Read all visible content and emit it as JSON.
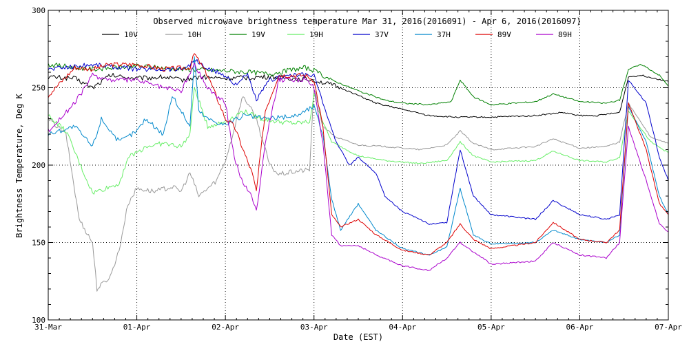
{
  "chart_data": {
    "type": "line",
    "title": "Observed microwave brightness temperature Mar 31, 2016(2016091) - Apr  6, 2016(2016097)",
    "xlabel": "Date (EST)",
    "ylabel": "Brightness Temperature, Deg K",
    "xlim": [
      0,
      7
    ],
    "ylim": [
      100,
      300
    ],
    "x_ticks": [
      {
        "value": 0,
        "label": "31-Mar"
      },
      {
        "value": 1,
        "label": "01-Apr"
      },
      {
        "value": 2,
        "label": "02-Apr"
      },
      {
        "value": 3,
        "label": "03-Apr"
      },
      {
        "value": 4,
        "label": "04-Apr"
      },
      {
        "value": 5,
        "label": "05-Apr"
      },
      {
        "value": 6,
        "label": "06-Apr"
      },
      {
        "value": 7,
        "label": "07-Apr"
      }
    ],
    "y_ticks": [
      100,
      150,
      200,
      250,
      300
    ],
    "grid": "dotted at labeled ticks",
    "legend_position": "top",
    "series": [
      {
        "name": "10V",
        "color": "#000000",
        "points": [
          [
            0,
            257
          ],
          [
            0.3,
            256
          ],
          [
            0.5,
            250
          ],
          [
            0.7,
            258
          ],
          [
            1.0,
            256
          ],
          [
            1.3,
            257
          ],
          [
            1.5,
            255
          ],
          [
            1.7,
            257
          ],
          [
            2.0,
            256
          ],
          [
            2.5,
            257
          ],
          [
            3.0,
            255
          ],
          [
            3.3,
            250
          ],
          [
            3.7,
            240
          ],
          [
            4.0,
            236
          ],
          [
            4.3,
            232
          ],
          [
            4.6,
            231
          ],
          [
            5.0,
            231
          ],
          [
            5.5,
            232
          ],
          [
            5.8,
            234
          ],
          [
            6.0,
            232
          ],
          [
            6.2,
            232
          ],
          [
            6.45,
            234
          ],
          [
            6.55,
            257
          ],
          [
            6.7,
            258
          ],
          [
            7.0,
            254
          ]
        ]
      },
      {
        "name": "10H",
        "color": "#999999",
        "points": [
          [
            0,
            230
          ],
          [
            0.2,
            220
          ],
          [
            0.35,
            165
          ],
          [
            0.5,
            150
          ],
          [
            0.55,
            120
          ],
          [
            0.7,
            128
          ],
          [
            0.8,
            145
          ],
          [
            0.9,
            175
          ],
          [
            1.0,
            185
          ],
          [
            1.2,
            183
          ],
          [
            1.4,
            186
          ],
          [
            1.5,
            183
          ],
          [
            1.6,
            195
          ],
          [
            1.7,
            180
          ],
          [
            1.9,
            190
          ],
          [
            2.0,
            203
          ],
          [
            2.05,
            213
          ],
          [
            2.2,
            245
          ],
          [
            2.35,
            230
          ],
          [
            2.5,
            200
          ],
          [
            2.6,
            194
          ],
          [
            2.8,
            196
          ],
          [
            2.95,
            197
          ],
          [
            3.0,
            250
          ],
          [
            3.1,
            225
          ],
          [
            3.25,
            218
          ],
          [
            3.5,
            213
          ],
          [
            3.8,
            212
          ],
          [
            4.2,
            210
          ],
          [
            4.5,
            213
          ],
          [
            4.65,
            222
          ],
          [
            4.8,
            214
          ],
          [
            5.0,
            210
          ],
          [
            5.5,
            212
          ],
          [
            5.7,
            217
          ],
          [
            6.0,
            211
          ],
          [
            6.3,
            212
          ],
          [
            6.45,
            215
          ],
          [
            6.55,
            240
          ],
          [
            6.8,
            218
          ],
          [
            7.0,
            214
          ]
        ]
      },
      {
        "name": "19V",
        "color": "#008000",
        "points": [
          [
            0,
            265
          ],
          [
            0.5,
            262
          ],
          [
            1.0,
            264
          ],
          [
            1.5,
            262
          ],
          [
            2.0,
            261
          ],
          [
            2.5,
            259
          ],
          [
            2.9,
            263
          ],
          [
            3.0,
            261
          ],
          [
            3.2,
            255
          ],
          [
            3.5,
            248
          ],
          [
            3.8,
            242
          ],
          [
            4.0,
            240
          ],
          [
            4.3,
            239
          ],
          [
            4.55,
            241
          ],
          [
            4.65,
            255
          ],
          [
            4.8,
            244
          ],
          [
            5.0,
            239
          ],
          [
            5.5,
            241
          ],
          [
            5.7,
            246
          ],
          [
            6.0,
            241
          ],
          [
            6.3,
            240
          ],
          [
            6.45,
            242
          ],
          [
            6.55,
            262
          ],
          [
            6.7,
            265
          ],
          [
            6.9,
            258
          ],
          [
            7.0,
            251
          ]
        ]
      },
      {
        "name": "19H",
        "color": "#66ee66",
        "points": [
          [
            0,
            232
          ],
          [
            0.2,
            222
          ],
          [
            0.4,
            195
          ],
          [
            0.5,
            182
          ],
          [
            0.8,
            188
          ],
          [
            0.9,
            205
          ],
          [
            1.0,
            208
          ],
          [
            1.1,
            212
          ],
          [
            1.3,
            214
          ],
          [
            1.5,
            212
          ],
          [
            1.6,
            220
          ],
          [
            1.65,
            250
          ],
          [
            1.8,
            225
          ],
          [
            2.0,
            228
          ],
          [
            2.2,
            235
          ],
          [
            2.4,
            230
          ],
          [
            2.6,
            228
          ],
          [
            2.8,
            227
          ],
          [
            2.95,
            228
          ],
          [
            3.0,
            245
          ],
          [
            3.1,
            228
          ],
          [
            3.2,
            215
          ],
          [
            3.5,
            206
          ],
          [
            3.8,
            203
          ],
          [
            4.2,
            201
          ],
          [
            4.5,
            203
          ],
          [
            4.65,
            215
          ],
          [
            4.8,
            206
          ],
          [
            5.0,
            202
          ],
          [
            5.5,
            203
          ],
          [
            5.7,
            209
          ],
          [
            6.0,
            203
          ],
          [
            6.3,
            202
          ],
          [
            6.45,
            205
          ],
          [
            6.55,
            235
          ],
          [
            6.8,
            215
          ],
          [
            7.0,
            208
          ]
        ]
      },
      {
        "name": "37V",
        "color": "#0000cc",
        "points": [
          [
            0,
            262
          ],
          [
            0.5,
            265
          ],
          [
            1.0,
            262
          ],
          [
            1.5,
            262
          ],
          [
            1.6,
            265
          ],
          [
            1.65,
            268
          ],
          [
            1.8,
            262
          ],
          [
            2.0,
            258
          ],
          [
            2.1,
            252
          ],
          [
            2.25,
            258
          ],
          [
            2.35,
            242
          ],
          [
            2.5,
            255
          ],
          [
            2.7,
            258
          ],
          [
            3.0,
            258
          ],
          [
            3.1,
            240
          ],
          [
            3.25,
            215
          ],
          [
            3.4,
            200
          ],
          [
            3.5,
            205
          ],
          [
            3.7,
            195
          ],
          [
            3.8,
            180
          ],
          [
            4.0,
            170
          ],
          [
            4.3,
            162
          ],
          [
            4.5,
            163
          ],
          [
            4.65,
            210
          ],
          [
            4.8,
            180
          ],
          [
            5.0,
            168
          ],
          [
            5.5,
            165
          ],
          [
            5.7,
            177
          ],
          [
            6.0,
            168
          ],
          [
            6.3,
            165
          ],
          [
            6.45,
            168
          ],
          [
            6.55,
            255
          ],
          [
            6.75,
            240
          ],
          [
            6.9,
            205
          ],
          [
            7.0,
            190
          ]
        ]
      },
      {
        "name": "37H",
        "color": "#0088cc",
        "points": [
          [
            0,
            220
          ],
          [
            0.3,
            225
          ],
          [
            0.5,
            212
          ],
          [
            0.6,
            230
          ],
          [
            0.8,
            215
          ],
          [
            1.0,
            222
          ],
          [
            1.1,
            230
          ],
          [
            1.3,
            220
          ],
          [
            1.4,
            245
          ],
          [
            1.6,
            225
          ],
          [
            1.65,
            270
          ],
          [
            1.7,
            235
          ],
          [
            1.8,
            230
          ],
          [
            2.0,
            226
          ],
          [
            2.2,
            232
          ],
          [
            2.5,
            230
          ],
          [
            2.8,
            232
          ],
          [
            3.0,
            238
          ],
          [
            3.1,
            220
          ],
          [
            3.2,
            178
          ],
          [
            3.3,
            158
          ],
          [
            3.5,
            175
          ],
          [
            3.7,
            158
          ],
          [
            4.0,
            146
          ],
          [
            4.3,
            142
          ],
          [
            4.5,
            147
          ],
          [
            4.65,
            185
          ],
          [
            4.8,
            155
          ],
          [
            5.0,
            149
          ],
          [
            5.5,
            150
          ],
          [
            5.7,
            158
          ],
          [
            6.0,
            152
          ],
          [
            6.3,
            150
          ],
          [
            6.45,
            155
          ],
          [
            6.55,
            238
          ],
          [
            6.75,
            215
          ],
          [
            6.9,
            180
          ],
          [
            7.0,
            168
          ]
        ]
      },
      {
        "name": "89V",
        "color": "#dd0000",
        "points": [
          [
            0,
            245
          ],
          [
            0.3,
            263
          ],
          [
            0.5,
            262
          ],
          [
            0.7,
            265
          ],
          [
            1.0,
            265
          ],
          [
            1.3,
            262
          ],
          [
            1.6,
            263
          ],
          [
            1.65,
            272
          ],
          [
            1.8,
            258
          ],
          [
            2.0,
            230
          ],
          [
            2.1,
            225
          ],
          [
            2.3,
            195
          ],
          [
            2.35,
            183
          ],
          [
            2.45,
            235
          ],
          [
            2.6,
            258
          ],
          [
            2.9,
            258
          ],
          [
            3.0,
            255
          ],
          [
            3.1,
            225
          ],
          [
            3.2,
            168
          ],
          [
            3.3,
            160
          ],
          [
            3.5,
            165
          ],
          [
            3.7,
            155
          ],
          [
            4.0,
            145
          ],
          [
            4.3,
            142
          ],
          [
            4.5,
            150
          ],
          [
            4.65,
            162
          ],
          [
            4.8,
            152
          ],
          [
            5.0,
            146
          ],
          [
            5.5,
            150
          ],
          [
            5.7,
            163
          ],
          [
            6.0,
            152
          ],
          [
            6.3,
            150
          ],
          [
            6.45,
            158
          ],
          [
            6.55,
            240
          ],
          [
            6.75,
            210
          ],
          [
            6.9,
            175
          ],
          [
            7.0,
            168
          ]
        ]
      },
      {
        "name": "89H",
        "color": "#aa00cc",
        "points": [
          [
            0,
            222
          ],
          [
            0.3,
            240
          ],
          [
            0.5,
            258
          ],
          [
            0.7,
            255
          ],
          [
            1.0,
            255
          ],
          [
            1.3,
            250
          ],
          [
            1.5,
            248
          ],
          [
            1.65,
            265
          ],
          [
            1.8,
            250
          ],
          [
            2.0,
            240
          ],
          [
            2.1,
            205
          ],
          [
            2.2,
            188
          ],
          [
            2.3,
            180
          ],
          [
            2.35,
            170
          ],
          [
            2.45,
            215
          ],
          [
            2.6,
            255
          ],
          [
            2.9,
            255
          ],
          [
            3.0,
            250
          ],
          [
            3.1,
            215
          ],
          [
            3.2,
            155
          ],
          [
            3.3,
            148
          ],
          [
            3.5,
            148
          ],
          [
            3.7,
            142
          ],
          [
            4.0,
            135
          ],
          [
            4.3,
            132
          ],
          [
            4.5,
            140
          ],
          [
            4.65,
            150
          ],
          [
            4.8,
            144
          ],
          [
            5.0,
            136
          ],
          [
            5.5,
            138
          ],
          [
            5.7,
            150
          ],
          [
            6.0,
            142
          ],
          [
            6.3,
            140
          ],
          [
            6.45,
            150
          ],
          [
            6.55,
            225
          ],
          [
            6.75,
            190
          ],
          [
            6.9,
            162
          ],
          [
            7.0,
            157
          ]
        ]
      }
    ]
  }
}
